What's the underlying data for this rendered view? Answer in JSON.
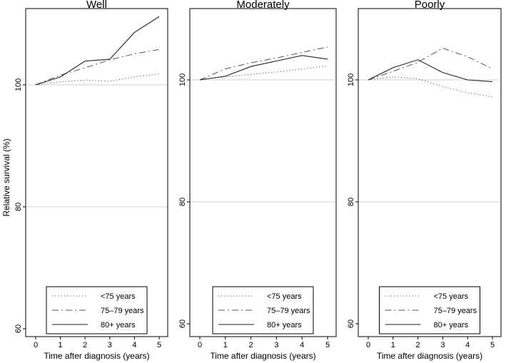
{
  "chart_data": {
    "type": "line",
    "ylabel": "Relative survival (%)",
    "xlabel": "Time after diagnosis (years)",
    "shared_x_ticks": [
      "0",
      "1",
      "2",
      "3",
      "4",
      "5"
    ],
    "shared_y_ticks": [
      "60",
      "80",
      "100"
    ],
    "ylim": [
      60,
      112
    ],
    "xlim": [
      0,
      5
    ],
    "grid_y": [
      80,
      100
    ],
    "legend_position": "bottom-center",
    "series_styles": [
      {
        "name": "<75 years",
        "dash": "dotted",
        "color": "#555555"
      },
      {
        "name": "75–79 years",
        "dash": "dashdot",
        "color": "#555555"
      },
      {
        "name": "80+ years",
        "dash": "solid",
        "color": "#222222"
      }
    ],
    "panels": [
      {
        "title": "Well",
        "x": [
          0,
          1,
          2,
          3,
          4,
          5
        ],
        "series": [
          {
            "name": "<75 years",
            "values": [
              100,
              100.5,
              100.8,
              100.6,
              101.3,
              101.8
            ]
          },
          {
            "name": "75–79 years",
            "values": [
              100,
              101.6,
              102.8,
              104.1,
              105.1,
              105.8
            ]
          },
          {
            "name": "80+ years",
            "values": [
              100,
              101.3,
              103.9,
              104.2,
              108.6,
              111.2
            ]
          }
        ]
      },
      {
        "title": "Moderately",
        "x": [
          0,
          1,
          2,
          3,
          4,
          5
        ],
        "series": [
          {
            "name": "<75 years",
            "values": [
              100,
              100.5,
              100.9,
              101.3,
              101.8,
              102.3
            ]
          },
          {
            "name": "75–79 years",
            "values": [
              100,
              101.8,
              102.8,
              103.6,
              104.5,
              105.4
            ]
          },
          {
            "name": "80+ years",
            "values": [
              100,
              100.6,
              102.2,
              103.1,
              104.0,
              103.4
            ]
          }
        ]
      },
      {
        "title": "Poorly",
        "x": [
          0,
          1,
          2,
          3,
          4,
          5
        ],
        "series": [
          {
            "name": "<75 years",
            "values": [
              100,
              100.5,
              100.2,
              98.9,
              97.9,
              97.2
            ]
          },
          {
            "name": "75–79 years",
            "values": [
              100,
              101.4,
              102.9,
              105.2,
              103.8,
              101.8
            ]
          },
          {
            "name": "80+ years",
            "values": [
              100,
              102.0,
              103.3,
              101.2,
              100.0,
              99.7
            ]
          }
        ]
      }
    ]
  }
}
